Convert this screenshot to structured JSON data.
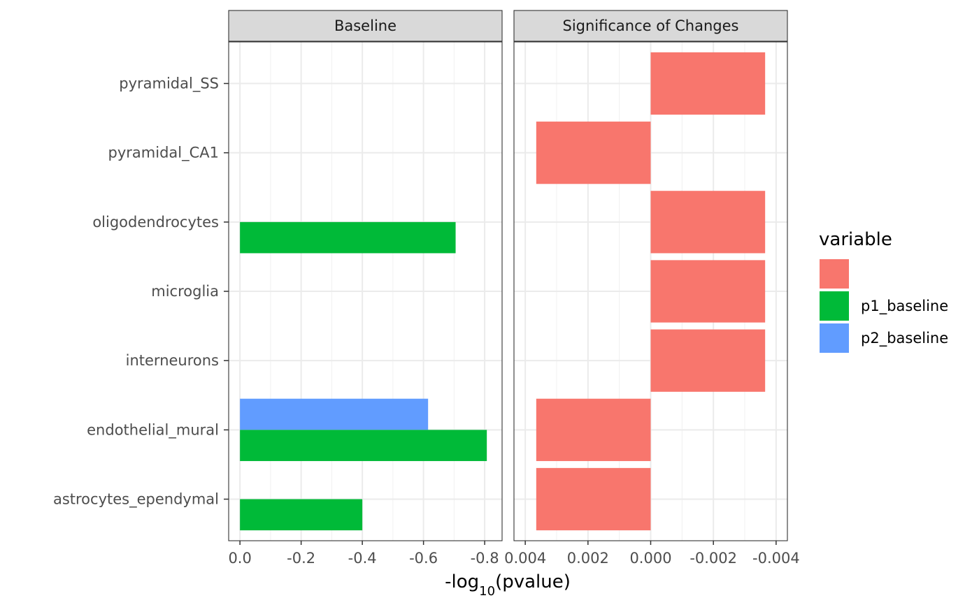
{
  "chart_data": {
    "type": "bar",
    "orientation": "horizontal",
    "categories": [
      "pyramidal_SS",
      "pyramidal_CA1",
      "oligodendrocytes",
      "microglia",
      "interneurons",
      "endothelial_mural",
      "astrocytes_ependymal"
    ],
    "panels": [
      {
        "title": "Baseline",
        "xlim": [
          0,
          -0.82
        ],
        "ticks": [
          0.0,
          -0.2,
          -0.4,
          -0.6,
          -0.8
        ],
        "tick_labels": [
          "0.0",
          "-0.2",
          "-0.4",
          "-0.6",
          "-0.8"
        ],
        "series": [
          {
            "name": "p2_baseline",
            "values": [
              null,
              null,
              null,
              null,
              null,
              -0.615,
              null
            ]
          },
          {
            "name": "p1_baseline",
            "values": [
              null,
              null,
              -0.705,
              null,
              null,
              -0.807,
              -0.4
            ]
          }
        ]
      },
      {
        "title": "Significance of Changes",
        "xlim": [
          0.004,
          -0.004
        ],
        "ticks": [
          0.004,
          0.002,
          0.0,
          -0.002,
          -0.004
        ],
        "tick_labels": [
          "0.004",
          "0.002",
          "0.000",
          "-0.002",
          "-0.004"
        ],
        "series": [
          {
            "name": "",
            "values": [
              -0.00365,
              0.00365,
              -0.00365,
              -0.00365,
              -0.00365,
              0.00365,
              0.00365
            ]
          }
        ]
      }
    ],
    "xlabel_parts": [
      "-log",
      "10",
      "(pvalue)"
    ],
    "grid": true,
    "legend": {
      "title": "variable",
      "position": "right",
      "entries": [
        {
          "label": "",
          "color": "#F8766D"
        },
        {
          "label": "p1_baseline",
          "color": "#00BA38"
        },
        {
          "label": "p2_baseline",
          "color": "#619CFF"
        }
      ]
    },
    "colors": {
      "": "#F8766D",
      "p1_baseline": "#00BA38",
      "p2_baseline": "#619CFF"
    }
  }
}
